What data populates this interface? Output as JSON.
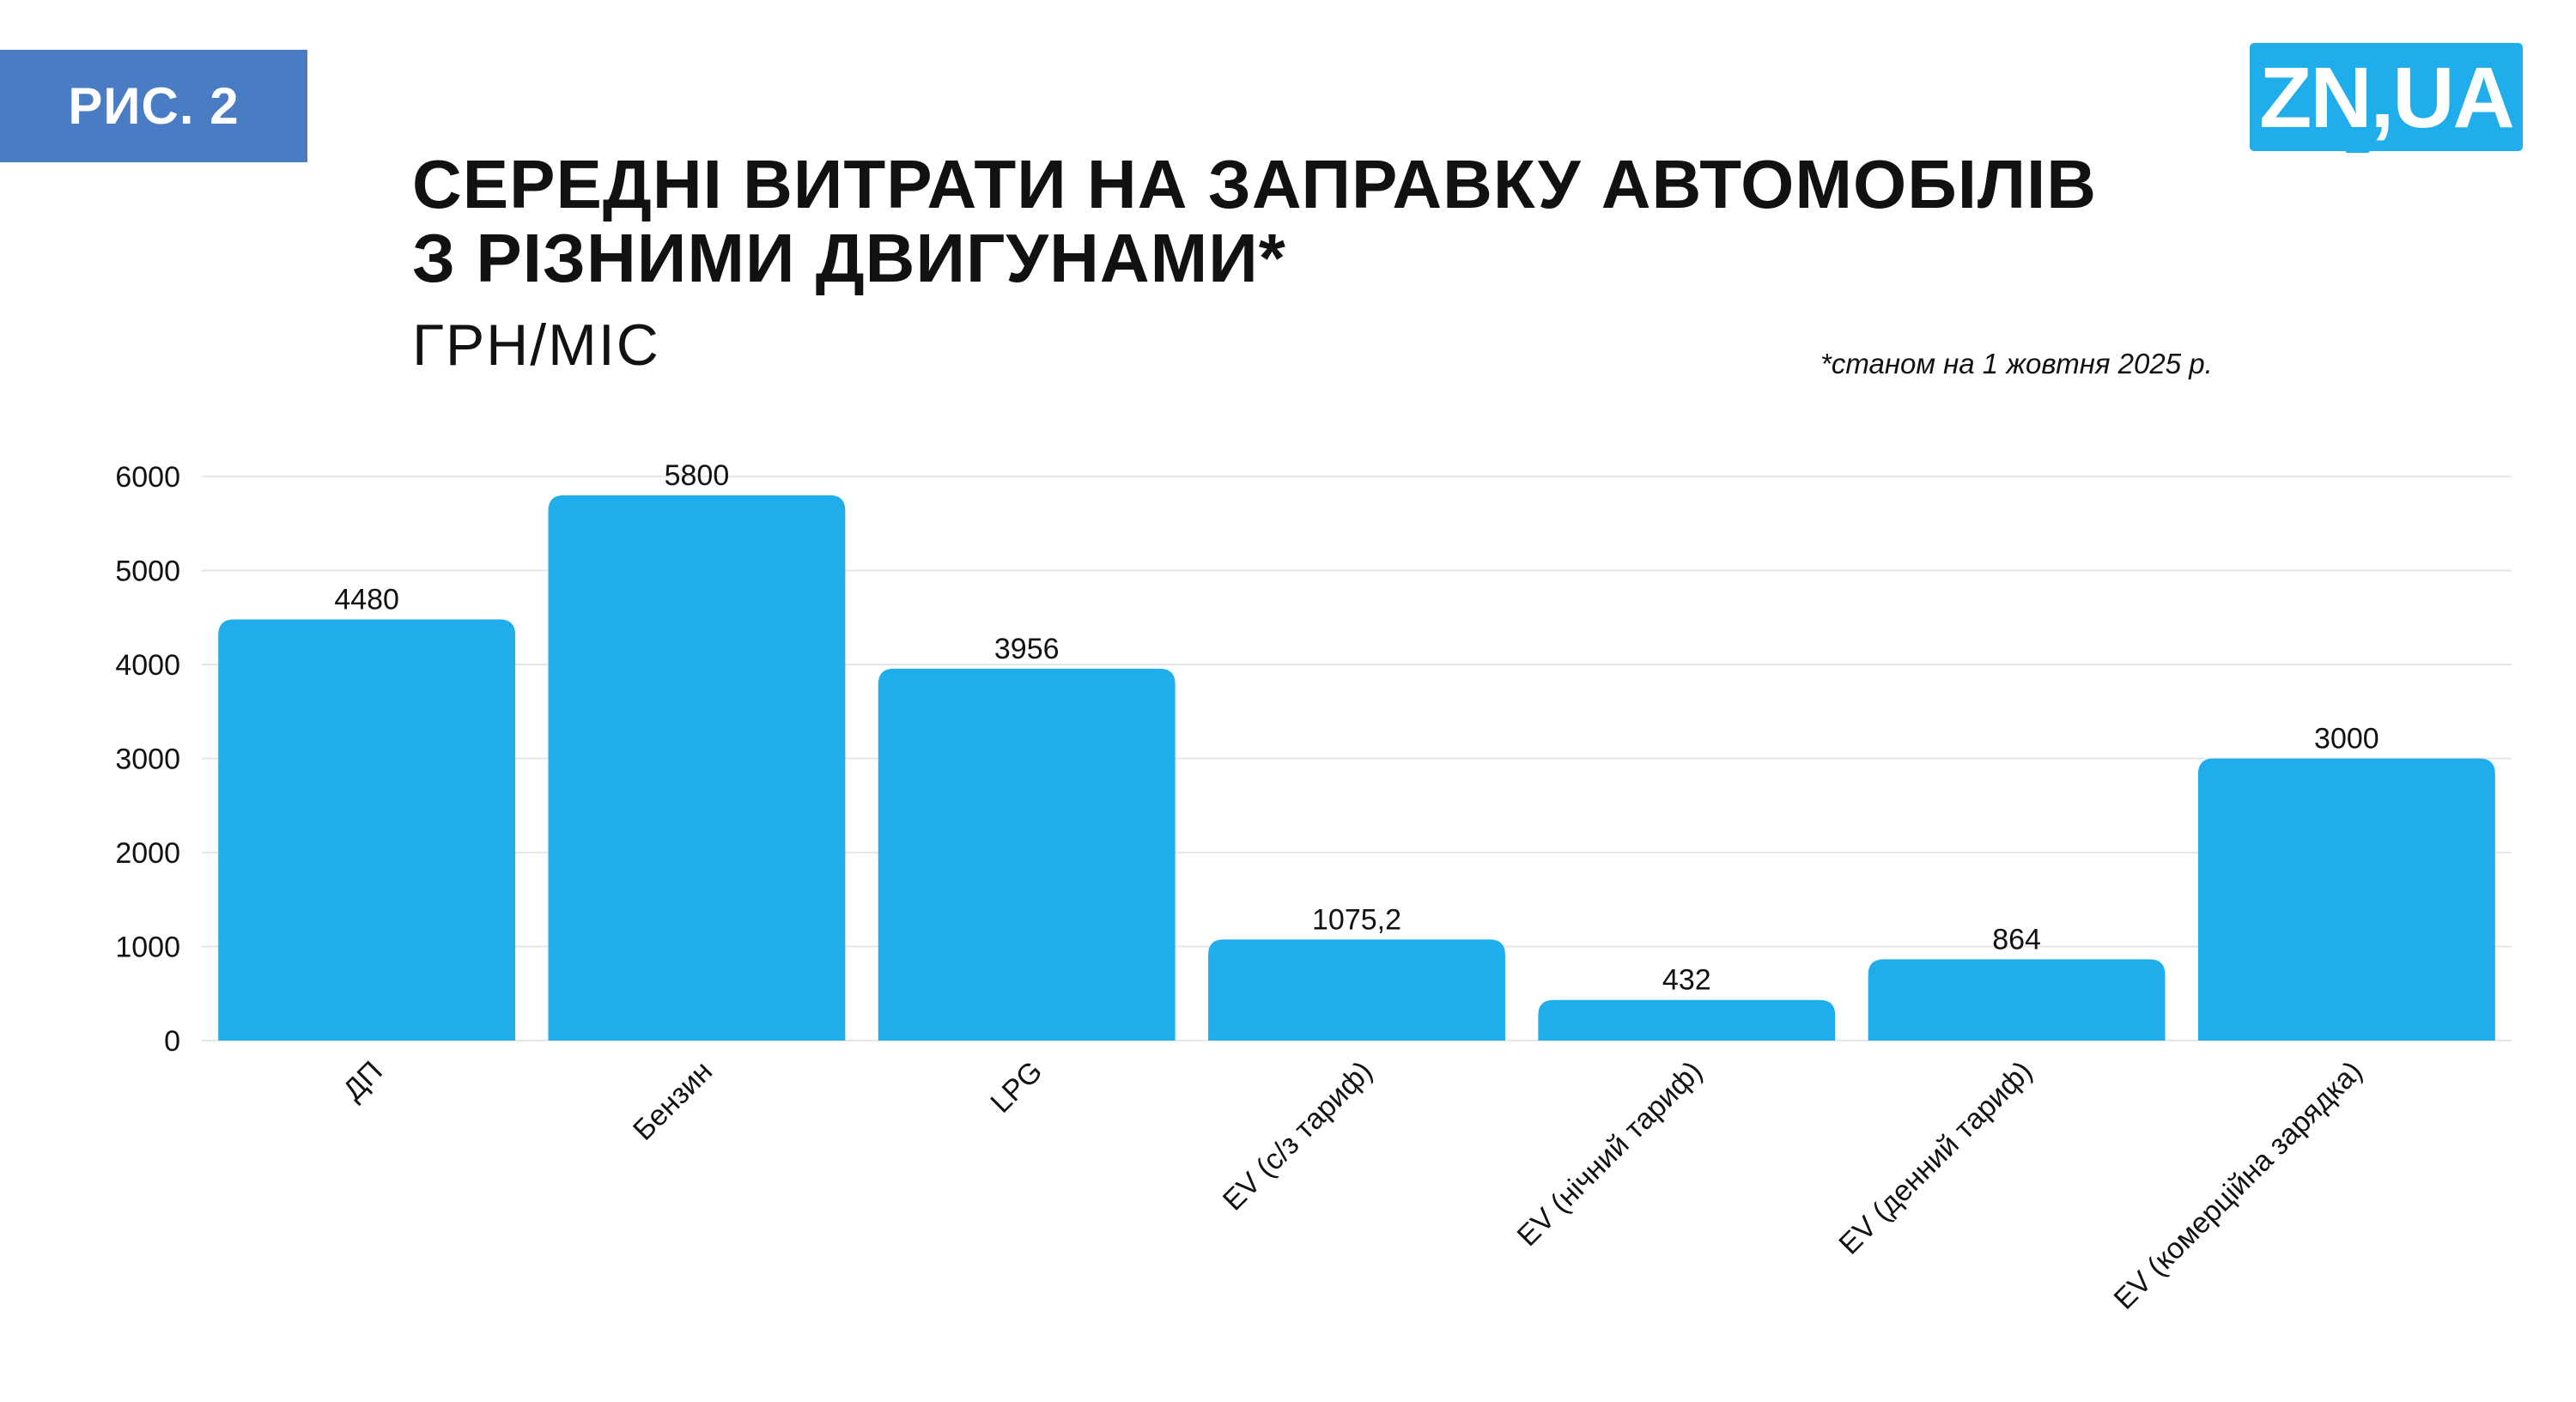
{
  "figure_label": "РИС. 2",
  "logo_text": "ZN,UA",
  "title_lines": [
    "СЕРЕДНІ ВИТРАТИ НА ЗАПРАВКУ АВТОМОБІЛІВ",
    "З РІЗНИМИ ДВИГУНАМИ*"
  ],
  "subtitle": "ГРН/МІС",
  "note": "*станом на 1 жовтня 2025 р.",
  "colors": {
    "bar": "#1fadec",
    "badge": "#4a7cc4",
    "logo": "#1fadec"
  },
  "chart_data": {
    "type": "bar",
    "categories": [
      "ДП",
      "Бензин",
      "LPG",
      "EV (с/з тариф)",
      "EV (нічний тариф)",
      "EV (денний тариф)",
      "EV (комерційна зарядка)"
    ],
    "values": [
      4480,
      5800,
      3956,
      1075.2,
      432,
      864,
      3000
    ],
    "value_labels": [
      "4480",
      "5800",
      "3956",
      "1075,2",
      "432",
      "864",
      "3000"
    ],
    "y_ticks": [
      0,
      1000,
      2000,
      3000,
      4000,
      5000,
      6000
    ],
    "ylim": [
      0,
      6000
    ],
    "grid": true,
    "legend": "none"
  }
}
